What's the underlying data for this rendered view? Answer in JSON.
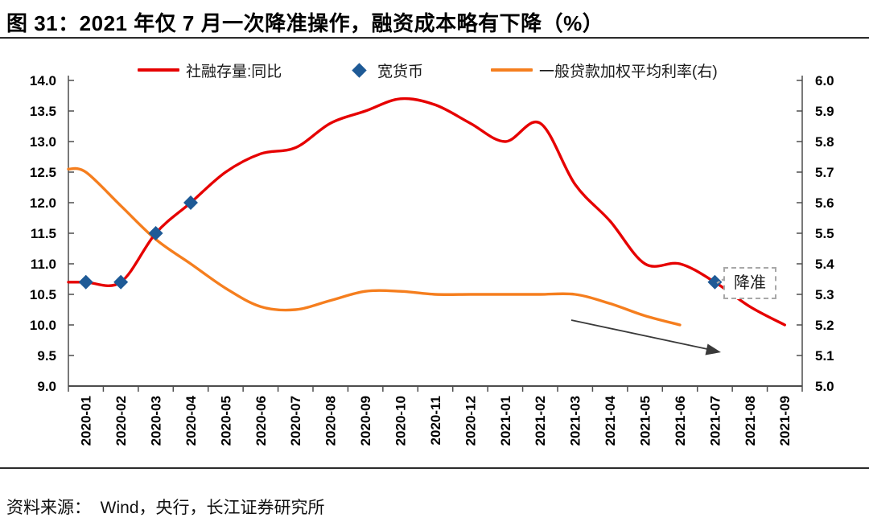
{
  "title": "图 31：2021 年仅 7 月一次降准操作，融资成本略有下降（%）",
  "source": "资料来源：  Wind，央行，长江证券研究所",
  "colors": {
    "sf_red": "#E60000",
    "rate_orange": "#F57E1E",
    "diamond_blue": "#1E5A96",
    "axis": "#4d4d4d",
    "label_text": "#000000",
    "annotation_border": "#a8a8a8",
    "arrow": "#3a3a3a",
    "divider": "#2b2b2b"
  },
  "legend": {
    "items": [
      {
        "label": "社融存量:同比",
        "swatch": "line",
        "color": "#E60000"
      },
      {
        "label": "宽货币",
        "swatch": "diamond",
        "color": "#1E5A96"
      },
      {
        "label": "一般贷款加权平均利率(右)",
        "swatch": "line",
        "color": "#F57E1E"
      }
    ]
  },
  "chart_data": {
    "type": "line",
    "grid": false,
    "legend_position": "top",
    "categories": [
      "2020-01",
      "2020-02",
      "2020-03",
      "2020-04",
      "2020-05",
      "2020-06",
      "2020-07",
      "2020-08",
      "2020-09",
      "2020-10",
      "2020-11",
      "2020-12",
      "2021-01",
      "2021-02",
      "2021-03",
      "2021-04",
      "2021-05",
      "2021-06",
      "2021-07",
      "2021-08",
      "2021-09"
    ],
    "left_axis": {
      "min": 9.0,
      "max": 14.0,
      "step": 0.5,
      "tick_labels": [
        "14.0",
        "13.5",
        "13.0",
        "12.5",
        "12.0",
        "11.5",
        "11.0",
        "10.5",
        "10.0",
        "9.5",
        "9.0"
      ]
    },
    "right_axis": {
      "min": 5.0,
      "max": 6.0,
      "step": 0.1,
      "tick_labels": [
        "6.0",
        "5.9",
        "5.8",
        "5.7",
        "5.6",
        "5.5",
        "5.4",
        "5.3",
        "5.2",
        "5.1",
        "5.0"
      ]
    },
    "series": [
      {
        "name": "社融存量:同比",
        "axis": "left",
        "type": "smooth-line",
        "color": "#E60000",
        "edge_start": 10.7,
        "values": [
          10.7,
          10.7,
          11.5,
          12.0,
          12.5,
          12.8,
          12.9,
          13.3,
          13.5,
          13.7,
          13.6,
          13.3,
          13.0,
          13.3,
          12.3,
          11.7,
          11.0,
          11.0,
          10.7,
          10.3,
          10.0
        ]
      },
      {
        "name": "宽货币",
        "axis": "left",
        "type": "points-diamond",
        "color": "#1E5A96",
        "points": [
          {
            "category": "2020-01",
            "value": 10.7
          },
          {
            "category": "2020-02",
            "value": 10.7
          },
          {
            "category": "2020-03",
            "value": 11.5
          },
          {
            "category": "2020-04",
            "value": 12.0
          },
          {
            "category": "2021-07",
            "value": 10.7
          }
        ]
      },
      {
        "name": "一般贷款加权平均利率(右)",
        "axis": "right",
        "type": "smooth-line",
        "color": "#F57E1E",
        "edge_start": 5.71,
        "values": [
          5.7,
          5.59,
          5.48,
          5.4,
          5.32,
          5.26,
          5.25,
          5.28,
          5.31,
          5.31,
          5.3,
          5.3,
          5.3,
          5.3,
          5.3,
          5.27,
          5.23,
          5.2,
          null,
          null,
          null
        ]
      }
    ],
    "annotations": {
      "rrr_cut_label": "降准",
      "trend_arrow": "down-right"
    }
  }
}
